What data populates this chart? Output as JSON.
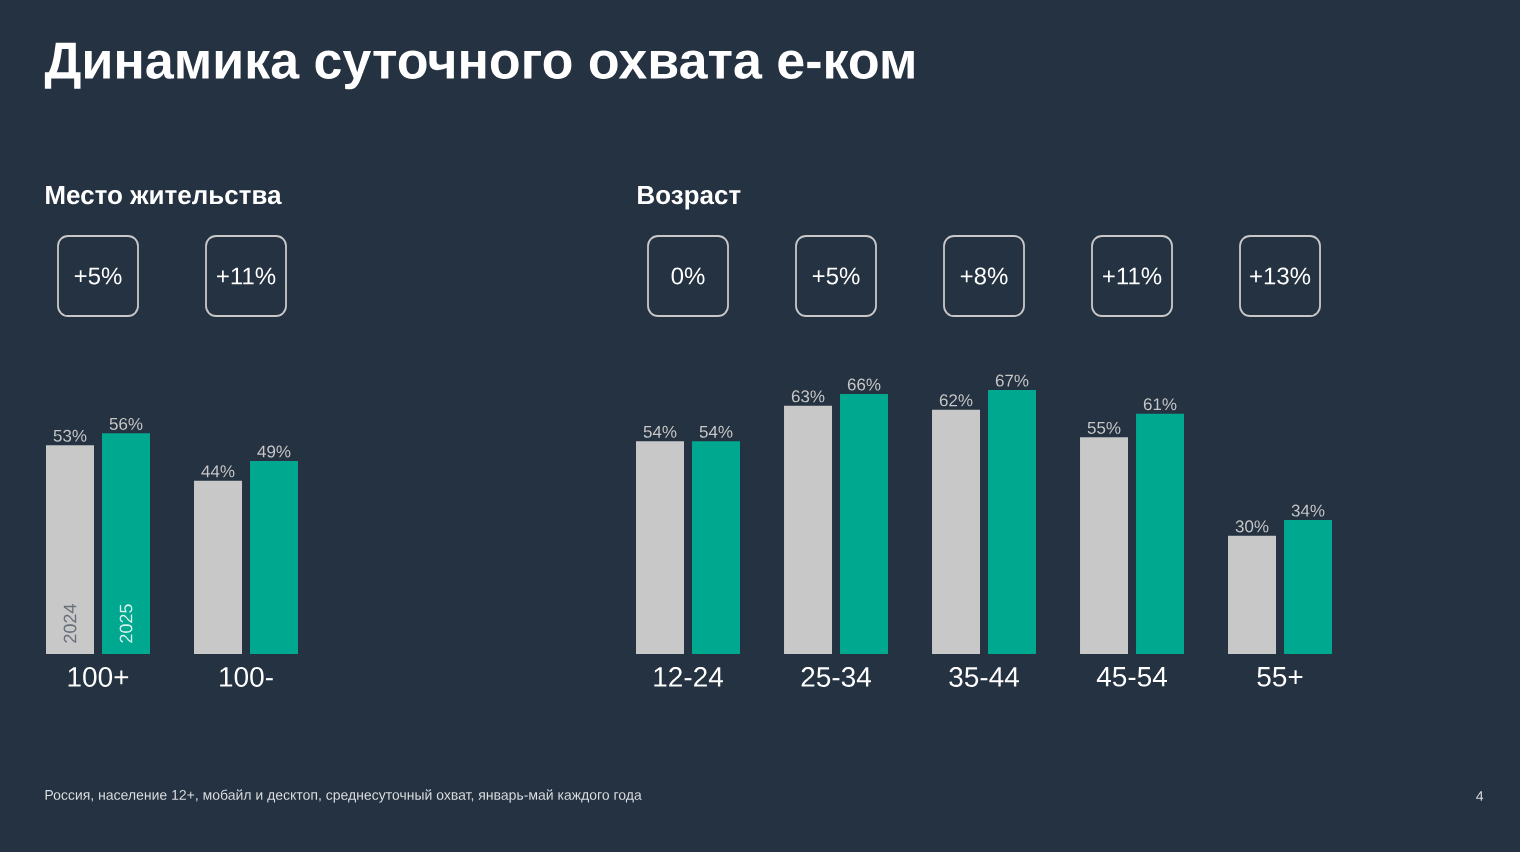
{
  "chart_data": [
    {
      "type": "bar",
      "title": "Динамика суточного охвата е-ком",
      "subtitle": "Место жительства",
      "categories": [
        "100+",
        "100-"
      ],
      "series": [
        {
          "name": "2024",
          "color": "#c8c8c8",
          "values": [
            53,
            44
          ],
          "value_labels": [
            "53%",
            "44%"
          ]
        },
        {
          "name": "2025",
          "color": "#00a88f",
          "values": [
            56,
            49
          ],
          "value_labels": [
            "56%",
            "49%"
          ]
        }
      ],
      "annotations": [
        "+5%",
        "+11%"
      ]
    },
    {
      "type": "bar",
      "subtitle": "Возраст",
      "categories": [
        "12-24",
        "25-34",
        "35-44",
        "45-54",
        "55+"
      ],
      "series": [
        {
          "name": null,
          "color": "#c8c8c8",
          "values": [
            54,
            63,
            62,
            55,
            30
          ],
          "value_labels": [
            "54%",
            "63%",
            "62%",
            "55%",
            "30%"
          ]
        },
        {
          "name": null,
          "color": "#00a88f",
          "values": [
            54,
            66,
            67,
            61,
            34
          ],
          "value_labels": [
            "54%",
            "66%",
            "67%",
            "61%",
            "34%"
          ]
        }
      ],
      "annotations": [
        "0%",
        "+5%",
        "+8%",
        "+11%",
        "+13%",
        "Россия, население 12+, мобайл и десктоп, среднесуточный охват, январь-май каждого года",
        "4"
      ]
    }
  ]
}
